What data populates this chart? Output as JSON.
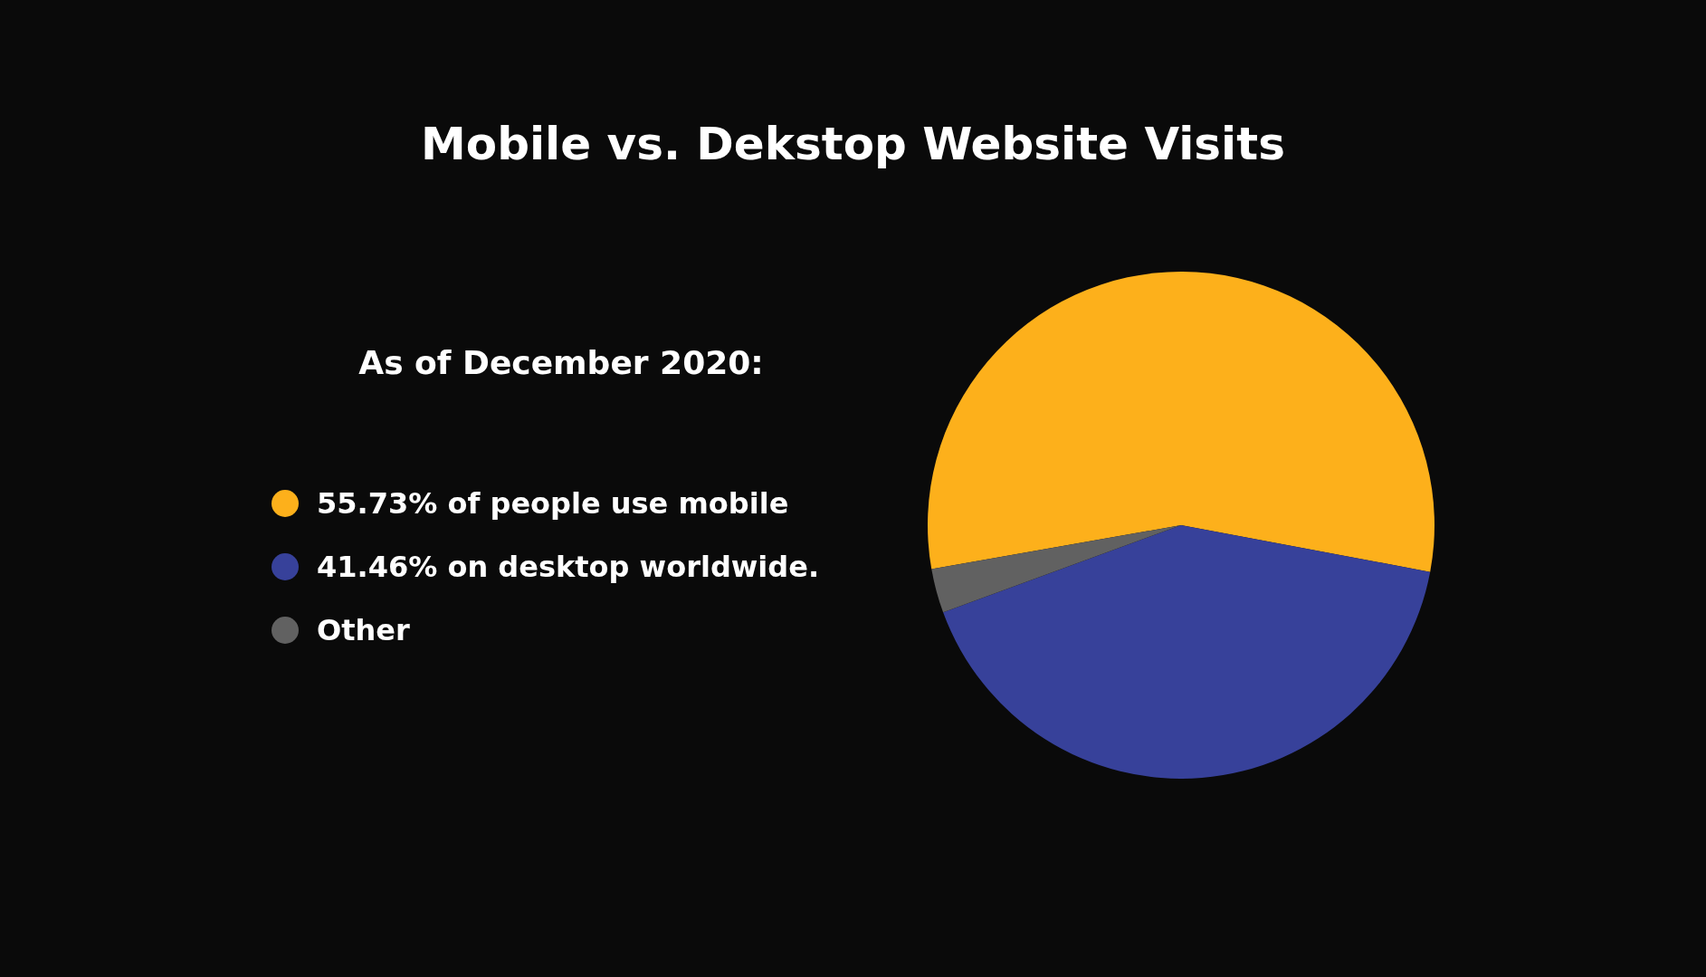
{
  "chart_data": {
    "type": "pie",
    "title": "Mobile vs. Dekstop Website Visits",
    "subtitle": "As of December 2020:",
    "categories": [
      "55.73% of people use mobile",
      "41.46% on desktop worldwide.",
      "Other"
    ],
    "values": [
      55.73,
      41.46,
      2.81
    ],
    "colors": [
      "#fdb01b",
      "#37419a",
      "#616161"
    ],
    "legend": "left"
  }
}
